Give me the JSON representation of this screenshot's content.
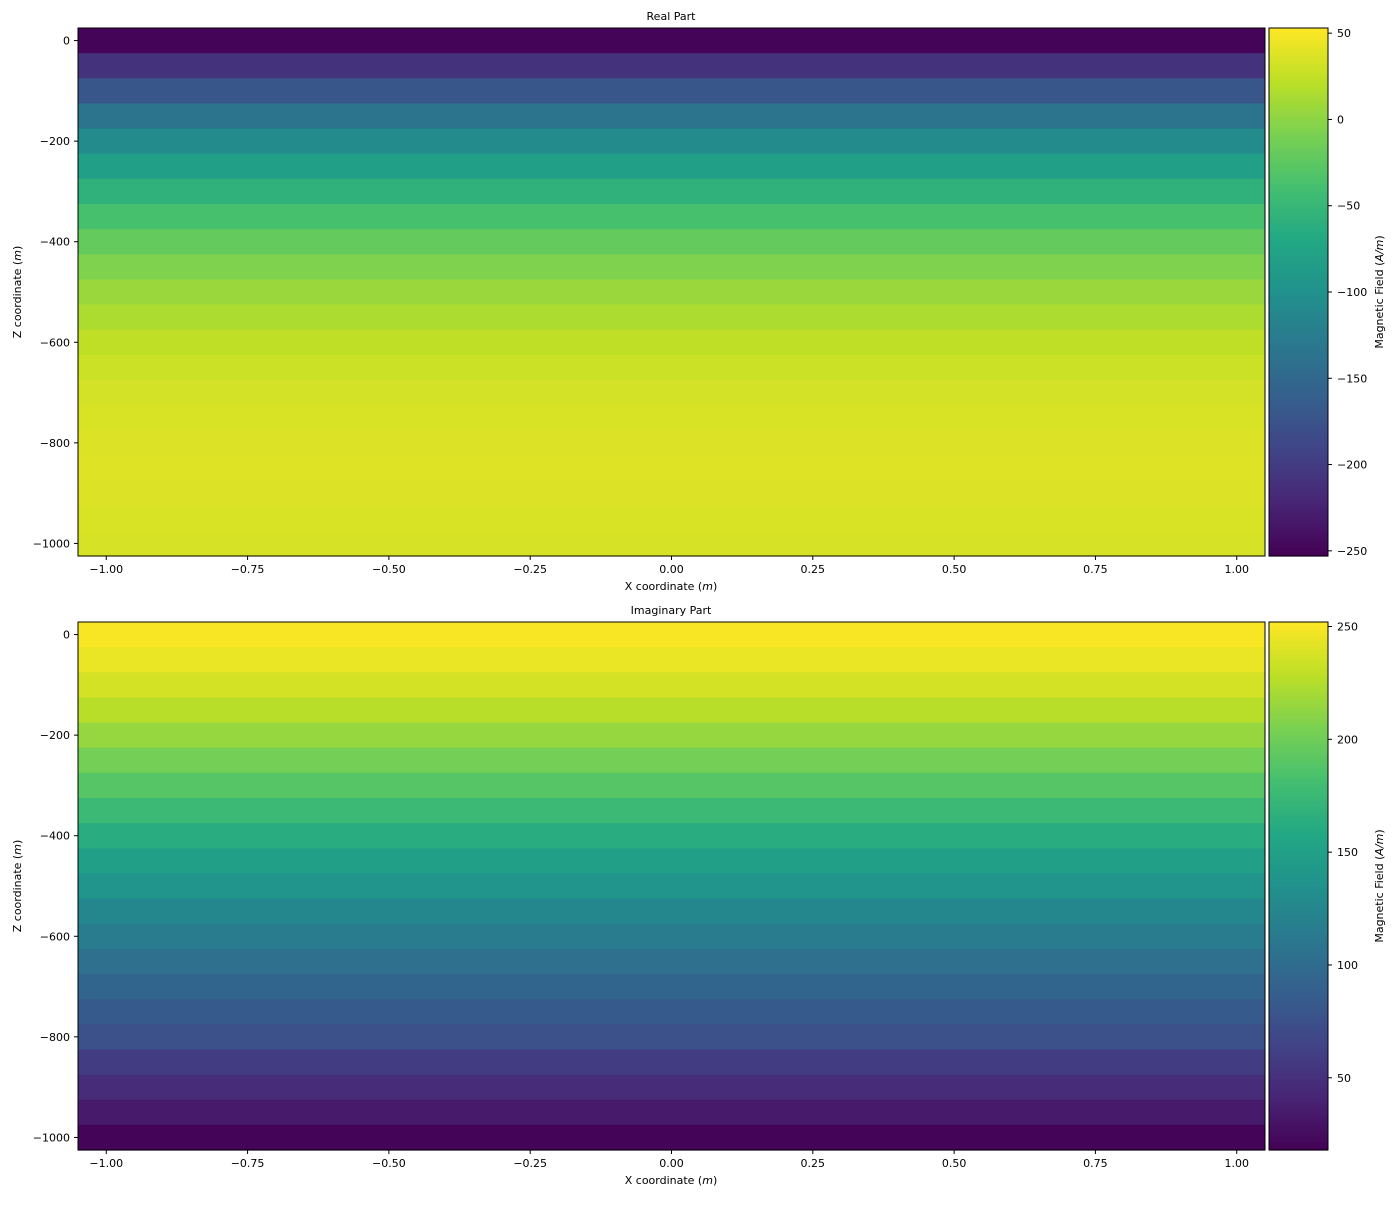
{
  "chart_data": [
    {
      "type": "heatmap",
      "title": "Real Part",
      "xlabel": "X coordinate",
      "xlabel_unit": "m",
      "ylabel": "Z coordinate",
      "ylabel_unit": "m",
      "colorbar_label": "Magnetic Field",
      "colorbar_unit": "A/m",
      "colormap": "viridis",
      "xlim": [
        -1.05,
        1.05
      ],
      "ylim": [
        -1025,
        25
      ],
      "xticks": [
        -1.0,
        -0.75,
        -0.5,
        -0.25,
        0.0,
        0.25,
        0.5,
        0.75,
        1.0
      ],
      "xtick_labels": [
        "−1.00",
        "−0.75",
        "−0.50",
        "−0.25",
        "0.00",
        "0.25",
        "0.50",
        "0.75",
        "1.00"
      ],
      "yticks": [
        0,
        -200,
        -400,
        -600,
        -800,
        -1000
      ],
      "ytick_labels": [
        "0",
        "−200",
        "−400",
        "−600",
        "−800",
        "−1000"
      ],
      "clim": [
        -253,
        53
      ],
      "cticks": [
        50,
        0,
        -50,
        -100,
        -150,
        -200,
        -250
      ],
      "ctick_labels": [
        "50",
        "0",
        "−50",
        "−100",
        "−150",
        "−200",
        "−250"
      ],
      "z_edges": [
        25,
        -25,
        -75,
        -125,
        -175,
        -225,
        -275,
        -325,
        -375,
        -425,
        -475,
        -525,
        -575,
        -625,
        -675,
        -725,
        -775,
        -825,
        -875,
        -925,
        -975,
        -1025
      ],
      "values": [
        -250,
        -209,
        -171,
        -137,
        -107,
        -80,
        -57,
        -37,
        -20,
        -6,
        6,
        15,
        23,
        29,
        33,
        36,
        37,
        38,
        37,
        36,
        34
      ]
    },
    {
      "type": "heatmap",
      "title": "Imaginary Part",
      "xlabel": "X coordinate",
      "xlabel_unit": "m",
      "ylabel": "Z coordinate",
      "ylabel_unit": "m",
      "colorbar_label": "Magnetic Field",
      "colorbar_unit": "A/m",
      "colormap": "viridis",
      "xlim": [
        -1.05,
        1.05
      ],
      "ylim": [
        -1025,
        25
      ],
      "xticks": [
        -1.0,
        -0.75,
        -0.5,
        -0.25,
        0.0,
        0.25,
        0.5,
        0.75,
        1.0
      ],
      "xtick_labels": [
        "−1.00",
        "−0.75",
        "−0.50",
        "−0.25",
        "0.00",
        "0.25",
        "0.50",
        "0.75",
        "1.00"
      ],
      "yticks": [
        0,
        -200,
        -400,
        -600,
        -800,
        -1000
      ],
      "ytick_labels": [
        "0",
        "−200",
        "−400",
        "−600",
        "−800",
        "−1000"
      ],
      "clim": [
        18,
        252
      ],
      "cticks": [
        250,
        200,
        150,
        100,
        50
      ],
      "ctick_labels": [
        "250",
        "200",
        "150",
        "100",
        "50"
      ],
      "z_edges": [
        25,
        -25,
        -75,
        -125,
        -175,
        -225,
        -275,
        -325,
        -375,
        -425,
        -475,
        -525,
        -575,
        -625,
        -675,
        -725,
        -775,
        -825,
        -875,
        -925,
        -975,
        -1025
      ],
      "values": [
        250,
        245,
        237,
        227,
        215,
        202,
        189,
        176,
        163,
        150,
        138,
        126,
        115,
        104,
        94,
        84,
        75,
        60,
        47,
        35,
        20
      ]
    }
  ]
}
